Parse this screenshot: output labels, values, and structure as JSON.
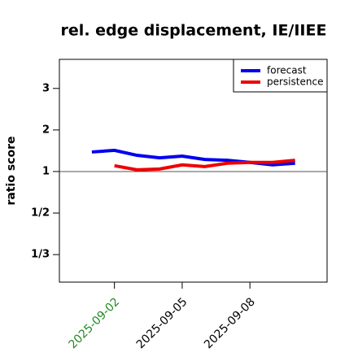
{
  "chart_data": {
    "type": "line",
    "title": "rel. edge displacement, IE/IIEE",
    "ylabel": "ratio score",
    "yscale": "ratio",
    "x": [
      "2025-09-01",
      "2025-09-02",
      "2025-09-03",
      "2025-09-04",
      "2025-09-05",
      "2025-09-06",
      "2025-09-07",
      "2025-09-08",
      "2025-09-09",
      "2025-09-10"
    ],
    "series": [
      {
        "name": "forecast",
        "color": "#0000ee",
        "values": [
          1.47,
          1.51,
          1.39,
          1.33,
          1.37,
          1.29,
          1.27,
          1.22,
          1.16,
          1.2
        ]
      },
      {
        "name": "persistence",
        "color": "#ee0000",
        "values": [
          null,
          1.14,
          1.04,
          1.06,
          1.16,
          1.12,
          1.2,
          1.22,
          1.22,
          1.27
        ]
      }
    ],
    "xlim": [
      "2025-08-30T13:30",
      "2025-09-11T10:00"
    ],
    "xticks": [
      "2025-09-02",
      "2025-09-05",
      "2025-09-08"
    ],
    "xtick_colors": [
      "#228b22",
      "#000000",
      "#000000"
    ],
    "ylim": [
      0.273,
      3.7
    ],
    "yticks": [
      {
        "value": 0.3333,
        "label": "1/3"
      },
      {
        "value": 0.5,
        "label": "1/2"
      },
      1,
      2,
      3
    ],
    "hline": 1,
    "legend": "upper right"
  }
}
